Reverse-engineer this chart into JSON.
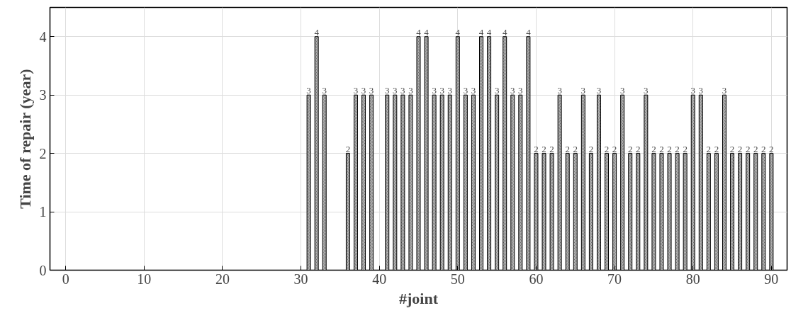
{
  "chart_data": {
    "type": "bar",
    "xlabel": "#joint",
    "ylabel": "Time of repair (year)",
    "x": [
      31,
      32,
      33,
      36,
      37,
      38,
      39,
      41,
      42,
      43,
      44,
      45,
      46,
      47,
      48,
      49,
      50,
      51,
      52,
      53,
      54,
      55,
      56,
      57,
      58,
      59,
      60,
      61,
      62,
      63,
      64,
      65,
      66,
      67,
      68,
      69,
      70,
      71,
      72,
      73,
      74,
      75,
      76,
      77,
      78,
      79,
      80,
      81,
      82,
      83,
      84,
      85,
      86,
      87,
      88,
      89,
      90
    ],
    "values": [
      3,
      4,
      3,
      2,
      3,
      3,
      3,
      3,
      3,
      3,
      3,
      4,
      4,
      3,
      3,
      3,
      4,
      3,
      3,
      4,
      4,
      3,
      4,
      3,
      3,
      4,
      2,
      2,
      2,
      3,
      2,
      2,
      3,
      2,
      3,
      2,
      2,
      3,
      2,
      2,
      3,
      2,
      2,
      2,
      2,
      2,
      3,
      3,
      2,
      2,
      3,
      2,
      2,
      2,
      2,
      2,
      2
    ],
    "color": "#b0b0b0",
    "xlim": [
      -2,
      92
    ],
    "xticks": [
      0,
      10,
      20,
      30,
      40,
      50,
      60,
      70,
      80,
      90
    ],
    "ylim": [
      0,
      4.5
    ],
    "yticks": [
      0,
      1,
      2,
      3,
      4
    ],
    "grid": true,
    "data_labels": true
  }
}
